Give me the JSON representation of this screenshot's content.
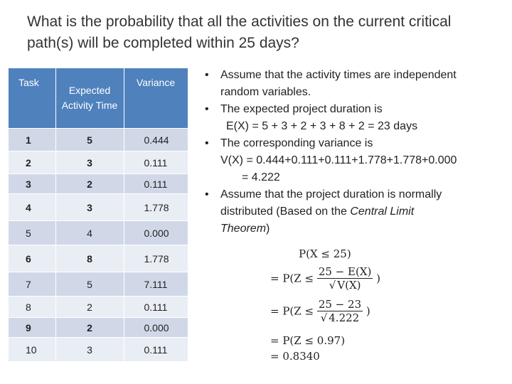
{
  "title": "What is the probability that all the activities on the current critical path(s) will be completed within 25 days?",
  "table": {
    "headers": [
      "Task",
      "Expected Activity Time",
      "Variance"
    ],
    "rows": [
      {
        "task": "1",
        "time": "5",
        "variance": "0.444",
        "critical": true
      },
      {
        "task": "2",
        "time": "3",
        "variance": "0.111",
        "critical": true
      },
      {
        "task": "3",
        "time": "2",
        "variance": "0.111",
        "critical": true
      },
      {
        "task": "4",
        "time": "3",
        "variance": "1.778",
        "critical": true
      },
      {
        "task": "5",
        "time": "4",
        "variance": "0.000",
        "critical": false
      },
      {
        "task": "6",
        "time": "8",
        "variance": "1.778",
        "critical": true
      },
      {
        "task": "7",
        "time": "5",
        "variance": "7.111",
        "critical": false
      },
      {
        "task": "8",
        "time": "2",
        "variance": "0.111",
        "critical": false
      },
      {
        "task": "9",
        "time": "2",
        "variance": "0.000",
        "critical": true
      },
      {
        "task": "10",
        "time": "3",
        "variance": "0.111",
        "critical": false
      }
    ]
  },
  "bullets": {
    "b1_line1": "Assume that the activity times are independent",
    "b1_line2": "random variables.",
    "b2_line1": "The expected project duration is",
    "b2_line2": "E(X) = 5 + 3 + 2 + 3 + 8 + 2 = 23 days",
    "b3_line1": "The corresponding variance is",
    "b3_line2": "V(X) = 0.444+0.111+0.111+1.778+1.778+0.000",
    "b3_line3": "= 4.222",
    "b4_line1": "Assume that the project duration is normally",
    "b4_line2_pre": "distributed (Based on the ",
    "b4_line2_em": "Central Limit",
    "b4_line3_em": "Theorem",
    "b4_line3_post": ")"
  },
  "math": {
    "line1": "P(X ≤ 25)",
    "line2_pre": "= P(Z ≤",
    "line2_num": "25 − E(X)",
    "line2_den": "V(X)",
    "line2_post": ")",
    "line3_pre": "= P(Z ≤",
    "line3_num": "25 − 23",
    "line3_den": "4.222",
    "line3_post": ")",
    "line4": "= P(Z ≤ 0.97)",
    "line5": "= 0.8340"
  }
}
